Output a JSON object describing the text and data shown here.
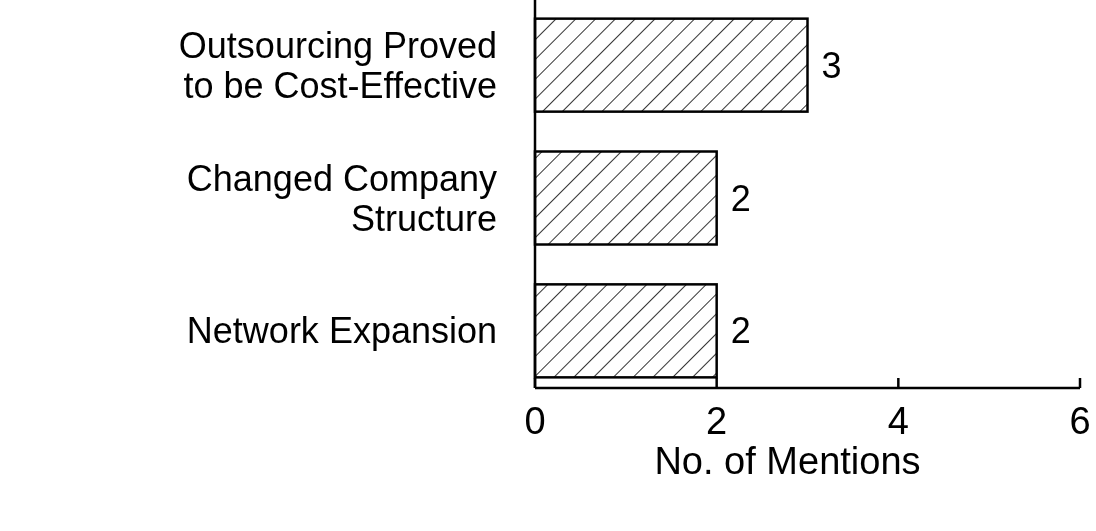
{
  "chart_data": {
    "type": "bar",
    "orientation": "horizontal",
    "categories": [
      "Outsourcing Proved to be Cost-Effective",
      "Changed Company Structure",
      "Network Expansion"
    ],
    "values": [
      3,
      2,
      2
    ],
    "color": "#000000",
    "xlim": [
      0,
      6
    ],
    "xticks": [
      0,
      2,
      4,
      6
    ],
    "xlabel": "No. of Mentions",
    "data_labels": true
  }
}
